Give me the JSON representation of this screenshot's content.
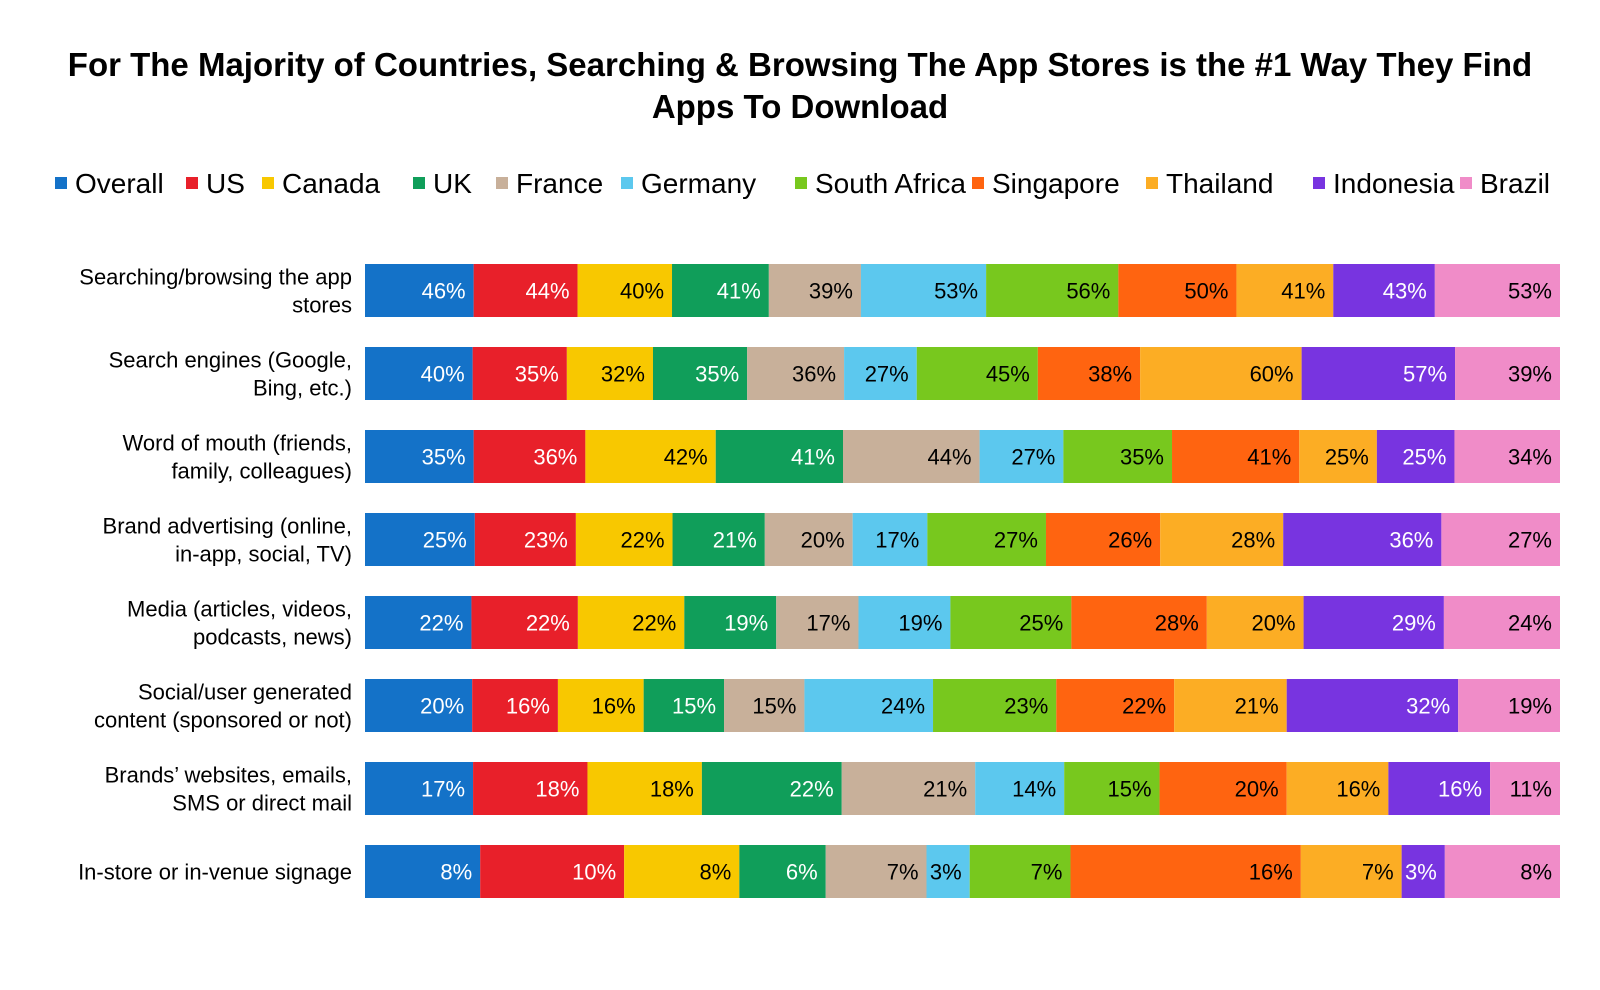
{
  "chart_data": {
    "type": "bar",
    "orientation": "horizontal",
    "stacked": true,
    "normalized": true,
    "title": "For The Majority of Countries, Searching & Browsing The App Stores is the #1 Way They Find Apps To Download",
    "legend_position": "top",
    "grid": false,
    "categories": [
      [
        "Searching/browsing the app",
        "stores"
      ],
      [
        "Search engines (Google,",
        "Bing, etc.)"
      ],
      [
        "Word of mouth (friends,",
        "family, colleagues)"
      ],
      [
        "Brand advertising (online,",
        "in-app, social, TV)"
      ],
      [
        "Media (articles, videos,",
        "podcasts, news)"
      ],
      [
        "Social/user generated",
        "content (sponsored or not)"
      ],
      [
        "Brands’ websites, emails,",
        "SMS or direct mail"
      ],
      [
        "In-store or in-venue signage"
      ]
    ],
    "series": [
      {
        "name": "Overall",
        "color": "#1472C8",
        "label_color": "#ffffff",
        "values": [
          46,
          40,
          35,
          25,
          22,
          20,
          17,
          8
        ]
      },
      {
        "name": "US",
        "color": "#E8202A",
        "label_color": "#ffffff",
        "values": [
          44,
          35,
          36,
          23,
          22,
          16,
          18,
          10
        ]
      },
      {
        "name": "Canada",
        "color": "#F8C800",
        "label_color": "#000000",
        "values": [
          40,
          32,
          42,
          22,
          22,
          16,
          18,
          8
        ]
      },
      {
        "name": "UK",
        "color": "#109E5A",
        "label_color": "#ffffff",
        "values": [
          41,
          35,
          41,
          21,
          19,
          15,
          22,
          6
        ]
      },
      {
        "name": "France",
        "color": "#C8B09A",
        "label_color": "#000000",
        "values": [
          39,
          36,
          44,
          20,
          17,
          15,
          21,
          7
        ]
      },
      {
        "name": "Germany",
        "color": "#5CC8EE",
        "label_color": "#000000",
        "values": [
          53,
          27,
          27,
          17,
          19,
          24,
          14,
          3
        ]
      },
      {
        "name": "South Africa",
        "color": "#78C81E",
        "label_color": "#000000",
        "values": [
          56,
          45,
          35,
          27,
          25,
          23,
          15,
          7
        ]
      },
      {
        "name": "Singapore",
        "color": "#FF6410",
        "label_color": "#000000",
        "values": [
          50,
          38,
          41,
          26,
          28,
          22,
          20,
          16
        ]
      },
      {
        "name": "Thailand",
        "color": "#FCAD24",
        "label_color": "#000000",
        "values": [
          41,
          60,
          25,
          28,
          20,
          21,
          16,
          7
        ]
      },
      {
        "name": "Indonesia",
        "color": "#7834E0",
        "label_color": "#ffffff",
        "values": [
          43,
          57,
          25,
          36,
          29,
          32,
          16,
          3
        ]
      },
      {
        "name": "Brazil",
        "color": "#F08CC8",
        "label_color": "#000000",
        "values": [
          53,
          39,
          34,
          27,
          24,
          19,
          11,
          8
        ]
      }
    ]
  }
}
